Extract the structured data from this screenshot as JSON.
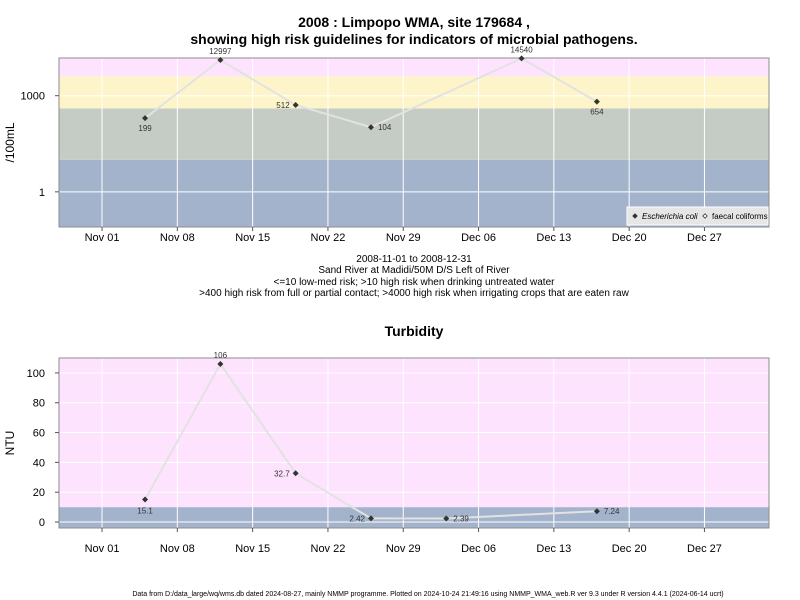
{
  "page": {
    "title_line1": "2008 : Limpopo WMA, site 179684 ,",
    "title_line2": "showing high risk guidelines for indicators of microbial pathogens.",
    "caption_lines": [
      "2008-11-01 to 2008-12-31",
      "Sand River at Madidi/50M D/S Left of River",
      "<=10 low-med risk; >10 high risk when drinking untreated water",
      ">400 high risk from full or partial contact; >4000 high risk when irrigating crops that are eaten raw"
    ],
    "footer": "Data from D:/data_large/wq/wms.db dated 2024-08-27, mainly NMMP programme. Plotted on 2024-10-24 21:49:16 using NMMP_WMA_web.R ver 9.3 under R version 4.4.1 (2024-06-14 ucrt)"
  },
  "chart_data": [
    {
      "type": "line",
      "title": "",
      "xlabel": "",
      "ylabel": "/100mL",
      "y_scale": "log10",
      "ylim": [
        0.08,
        15000
      ],
      "xlim": [
        "2008-10-28",
        "2009-01-02"
      ],
      "x_ticks": [
        "Nov 01",
        "Nov 08",
        "Nov 15",
        "Nov 22",
        "Nov 29",
        "Dec 06",
        "Dec 13",
        "Dec 20",
        "Dec 27"
      ],
      "x_tick_dates": [
        "2008-11-01",
        "2008-11-08",
        "2008-11-15",
        "2008-11-22",
        "2008-11-29",
        "2008-12-06",
        "2008-12-13",
        "2008-12-20",
        "2008-12-27"
      ],
      "y_ticks": [
        {
          "value": 1,
          "label": "1"
        },
        {
          "value": 1000,
          "label": "1000"
        }
      ],
      "bands": [
        {
          "from": 0.08,
          "to": 10,
          "color": "#a3b3cb"
        },
        {
          "from": 10,
          "to": 400,
          "color": "#c5ccc5"
        },
        {
          "from": 400,
          "to": 4000,
          "color": "#fdf5c9"
        },
        {
          "from": 4000,
          "to": 15000,
          "color": "#fde3fd"
        }
      ],
      "grid": true,
      "legend_position": "bottom-right",
      "legend": [
        {
          "label": "Escherichia coli",
          "marker": "filled-diamond",
          "italic": true
        },
        {
          "label": "faecal coliforms",
          "marker": "open-diamond",
          "italic": false
        }
      ],
      "series": [
        {
          "name": "Escherichia coli",
          "color": "#333333",
          "line_color": "#e2e2e2",
          "points": [
            {
              "x": "2008-11-05",
              "y": 199,
              "label": "199",
              "pos": "below"
            },
            {
              "x": "2008-11-12",
              "y": 12997,
              "label": "12997",
              "pos": "above"
            },
            {
              "x": "2008-11-19",
              "y": 512,
              "label": "512",
              "pos": "left"
            },
            {
              "x": "2008-11-26",
              "y": 104,
              "label": "104",
              "pos": "right"
            },
            {
              "x": "2008-12-10",
              "y": 14540,
              "label": "14540",
              "pos": "above"
            },
            {
              "x": "2008-12-17",
              "y": 654,
              "label": "654",
              "pos": "below"
            }
          ]
        }
      ]
    },
    {
      "type": "line",
      "title": "Turbidity",
      "xlabel": "",
      "ylabel": "NTU",
      "y_scale": "linear",
      "ylim": [
        -4,
        110
      ],
      "xlim": [
        "2008-10-28",
        "2009-01-02"
      ],
      "x_ticks": [
        "Nov 01",
        "Nov 08",
        "Nov 15",
        "Nov 22",
        "Nov 29",
        "Dec 06",
        "Dec 13",
        "Dec 20",
        "Dec 27"
      ],
      "x_tick_dates": [
        "2008-11-01",
        "2008-11-08",
        "2008-11-15",
        "2008-11-22",
        "2008-11-29",
        "2008-12-06",
        "2008-12-13",
        "2008-12-20",
        "2008-12-27"
      ],
      "y_ticks": [
        {
          "value": 0,
          "label": "0"
        },
        {
          "value": 20,
          "label": "20"
        },
        {
          "value": 40,
          "label": "40"
        },
        {
          "value": 60,
          "label": "60"
        },
        {
          "value": 80,
          "label": "80"
        },
        {
          "value": 100,
          "label": "100"
        }
      ],
      "bands": [
        {
          "from": -4,
          "to": 10,
          "color": "#a3b3cb"
        },
        {
          "from": 10,
          "to": 110,
          "color": "#fde3fd"
        }
      ],
      "grid": true,
      "series": [
        {
          "name": "",
          "color": "#333333",
          "line_color": "#e2e2e2",
          "points": [
            {
              "x": "2008-11-05",
              "y": 15.1,
              "label": "15.1",
              "pos": "below"
            },
            {
              "x": "2008-11-12",
              "y": 106,
              "label": "106",
              "pos": "above"
            },
            {
              "x": "2008-11-19",
              "y": 32.7,
              "label": "32.7",
              "pos": "left"
            },
            {
              "x": "2008-11-26",
              "y": 2.42,
              "label": "2.42",
              "pos": "left"
            },
            {
              "x": "2008-12-03",
              "y": 2.39,
              "label": "2.39",
              "pos": "right"
            },
            {
              "x": "2008-12-17",
              "y": 7.24,
              "label": "7.24",
              "pos": "right"
            }
          ]
        }
      ]
    }
  ]
}
